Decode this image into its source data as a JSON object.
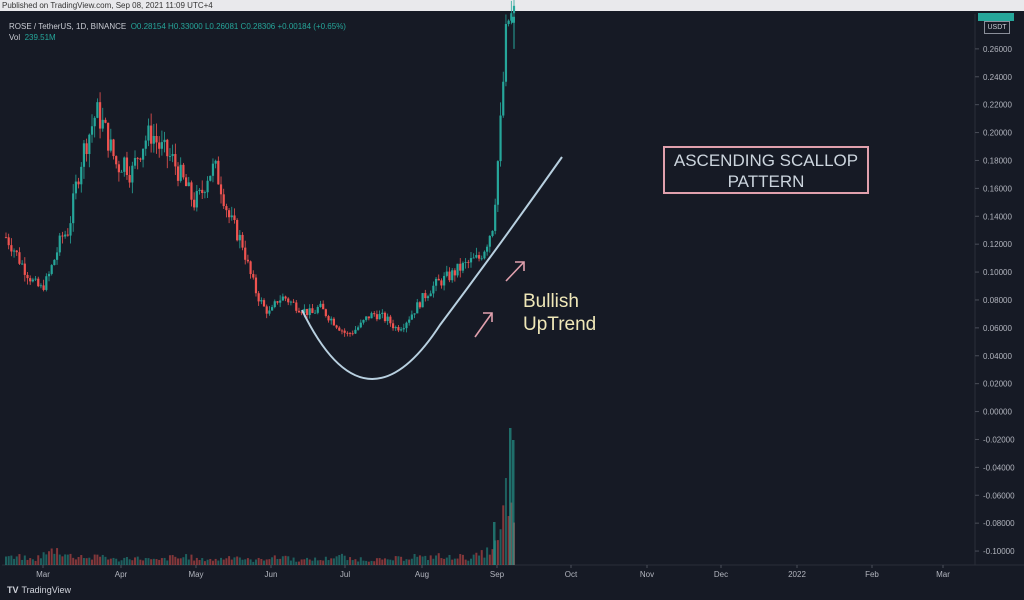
{
  "published": "Published on TradingView.com, Sep 08, 2021 11:09 UTC+4",
  "header": {
    "symbol": "ROSE / TetherUS, 1D, BINANCE",
    "ohlc": "O0.28154 H0.33000 L0.26081 C0.28306 +0.00184 (+0.65%)",
    "vol_label": "Vol",
    "vol_value": "239.51M"
  },
  "currency": "USDT",
  "annotations": {
    "pattern_line1": "ASCENDING SCALLOP",
    "pattern_line2": "PATTERN",
    "bullish_line1": "Bullish",
    "bullish_line2": "UpTrend"
  },
  "footer": {
    "logo": "TradingView"
  },
  "colors": {
    "bg": "#161a25",
    "up": "#26a69a",
    "down": "#ef5350",
    "curve": "#b8d0e0",
    "box": "#e0a0ad",
    "arrow": "#e0a0ad",
    "text": "#b2b5be"
  },
  "chart_data": {
    "type": "candlestick",
    "y_ticks": [
      "0.26000",
      "0.24000",
      "0.22000",
      "0.20000",
      "0.18000",
      "0.16000",
      "0.14000",
      "0.12000",
      "0.10000",
      "0.08000",
      "0.06000",
      "0.04000",
      "0.02000",
      "0.00000",
      "-0.02000",
      "-0.04000",
      "-0.06000",
      "-0.08000",
      "-0.10000"
    ],
    "ylim": [
      -0.11,
      0.285
    ],
    "x_labels": [
      "Mar",
      "Apr",
      "May",
      "Jun",
      "Jul",
      "Aug",
      "Sep",
      "Oct",
      "Nov",
      "Dec",
      "2022",
      "Feb",
      "Mar"
    ],
    "price_close_path": [
      0.125,
      0.118,
      0.108,
      0.1,
      0.092,
      0.088,
      0.095,
      0.11,
      0.125,
      0.13,
      0.16,
      0.185,
      0.2,
      0.215,
      0.205,
      0.19,
      0.175,
      0.18,
      0.17,
      0.185,
      0.195,
      0.2,
      0.19,
      0.185,
      0.18,
      0.17,
      0.16,
      0.15,
      0.155,
      0.17,
      0.175,
      0.16,
      0.14,
      0.13,
      0.12,
      0.1,
      0.085,
      0.075,
      0.07,
      0.08,
      0.082,
      0.078,
      0.075,
      0.072,
      0.07,
      0.075,
      0.07,
      0.065,
      0.06,
      0.055,
      0.058,
      0.062,
      0.068,
      0.07,
      0.068,
      0.065,
      0.06,
      0.062,
      0.068,
      0.075,
      0.082,
      0.088,
      0.092,
      0.095,
      0.098,
      0.102,
      0.105,
      0.108,
      0.11,
      0.12,
      0.135,
      0.2,
      0.28,
      0.283
    ],
    "volume_path": [
      0.3,
      0.2,
      0.25,
      0.2,
      0.15,
      0.3,
      0.35,
      0.5,
      0.4,
      0.3,
      0.25,
      0.3,
      0.2,
      0.25,
      0.3,
      0.2,
      0.15,
      0.2,
      0.25,
      0.2,
      0.2,
      0.15,
      0.15,
      0.2,
      0.25,
      0.2,
      0.3,
      0.2,
      0.15,
      0.2,
      0.15,
      0.2,
      0.25,
      0.3,
      0.2,
      0.15,
      0.15,
      0.2,
      0.25,
      0.2,
      0.3,
      0.2,
      0.15,
      0.15,
      0.2,
      0.15,
      0.2,
      0.25,
      0.3,
      0.2,
      0.15,
      0.2,
      0.15,
      0.2,
      0.15,
      0.15,
      0.2,
      0.2,
      0.25,
      0.3,
      0.2,
      0.25,
      0.3,
      0.2,
      0.25,
      0.3,
      0.2,
      0.25,
      0.3,
      0.4,
      0.5,
      0.8,
      2.5,
      1.0
    ]
  }
}
